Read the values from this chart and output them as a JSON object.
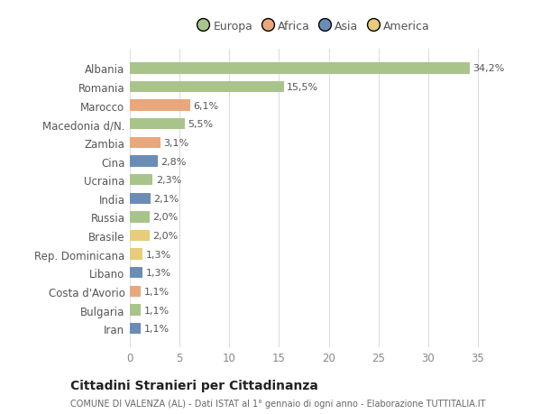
{
  "countries": [
    "Albania",
    "Romania",
    "Marocco",
    "Macedonia d/N.",
    "Zambia",
    "Cina",
    "Ucraina",
    "India",
    "Russia",
    "Brasile",
    "Rep. Dominicana",
    "Libano",
    "Costa d'Avorio",
    "Bulgaria",
    "Iran"
  ],
  "values": [
    34.2,
    15.5,
    6.1,
    5.5,
    3.1,
    2.8,
    2.3,
    2.1,
    2.0,
    2.0,
    1.3,
    1.3,
    1.1,
    1.1,
    1.1
  ],
  "labels": [
    "34,2%",
    "15,5%",
    "6,1%",
    "5,5%",
    "3,1%",
    "2,8%",
    "2,3%",
    "2,1%",
    "2,0%",
    "2,0%",
    "1,3%",
    "1,3%",
    "1,1%",
    "1,1%",
    "1,1%"
  ],
  "continents": [
    "Europa",
    "Europa",
    "Africa",
    "Europa",
    "Africa",
    "Asia",
    "Europa",
    "Asia",
    "Europa",
    "America",
    "America",
    "Asia",
    "Africa",
    "Europa",
    "Asia"
  ],
  "continent_colors": {
    "Europa": "#a8c48a",
    "Africa": "#e8a87c",
    "Asia": "#6b8db5",
    "America": "#e8cc7a"
  },
  "legend_entries": [
    "Europa",
    "Africa",
    "Asia",
    "America"
  ],
  "legend_colors": [
    "#a8c48a",
    "#e8a87c",
    "#6b8db5",
    "#e8cc7a"
  ],
  "background_color": "#ffffff",
  "grid_color": "#dddddd",
  "title": "Cittadini Stranieri per Cittadinanza",
  "subtitle": "COMUNE DI VALENZA (AL) - Dati ISTAT al 1° gennaio di ogni anno - Elaborazione TUTTITALIA.IT",
  "xlim": [
    0,
    37
  ],
  "xticks": [
    0,
    5,
    10,
    15,
    20,
    25,
    30,
    35
  ],
  "label_color": "#555555",
  "tick_color": "#888888"
}
